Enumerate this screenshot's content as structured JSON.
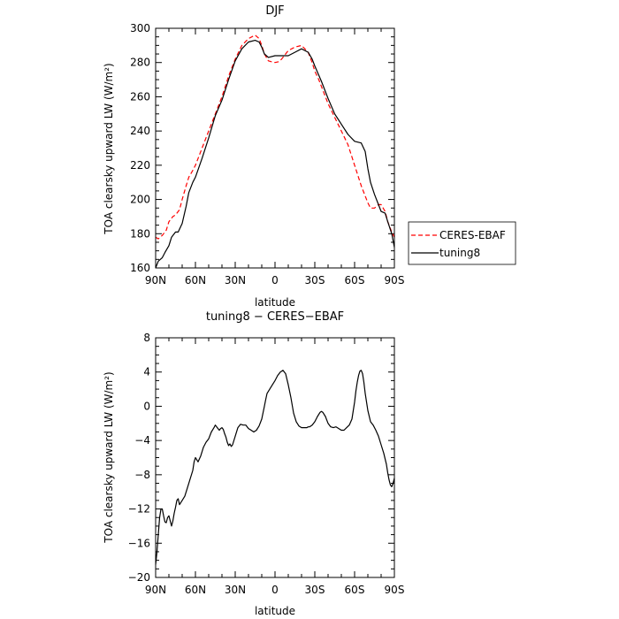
{
  "chart_data": [
    {
      "type": "line",
      "title": "DJF",
      "xlabel": "latitude",
      "ylabel": "TOA clearsky upward LW (W/m²)",
      "xlim": [
        90,
        -90
      ],
      "ylim": [
        160,
        300
      ],
      "xticks": [
        90,
        60,
        30,
        0,
        -30,
        -60,
        -90
      ],
      "xtick_labels": [
        "90N",
        "60N",
        "30N",
        "0",
        "30S",
        "60S",
        "90S"
      ],
      "yticks": [
        160,
        180,
        200,
        220,
        240,
        260,
        280,
        300
      ],
      "ytick_labels": [
        "160",
        "180",
        "200",
        "220",
        "240",
        "260",
        "280",
        "300"
      ],
      "legend": "right",
      "series": [
        {
          "name": "CERES-EBAF",
          "color": "#ff0000",
          "dash": "dashed",
          "x": [
            90,
            88,
            85,
            82,
            80,
            77,
            75,
            72,
            70,
            67,
            65,
            62,
            60,
            55,
            50,
            45,
            40,
            35,
            30,
            25,
            20,
            15,
            12,
            10,
            8,
            5,
            3,
            0,
            -3,
            -5,
            -8,
            -10,
            -15,
            -20,
            -25,
            -28,
            -30,
            -33,
            -35,
            -40,
            -45,
            -50,
            -55,
            -60,
            -65,
            -70,
            -72,
            -75,
            -78,
            -80,
            -83,
            -85,
            -88,
            -90
          ],
          "y": [
            178,
            177,
            179,
            182,
            187,
            190,
            191,
            194,
            200,
            208,
            213,
            217,
            220,
            230,
            240,
            250,
            260,
            272,
            282,
            290,
            294,
            296,
            294,
            290,
            285,
            281,
            280.5,
            280,
            280.5,
            282,
            285,
            287,
            289,
            290,
            286,
            280,
            275,
            270,
            266,
            256,
            248,
            240,
            232,
            220,
            208,
            198,
            195,
            195,
            197,
            197,
            193,
            187,
            181,
            178
          ]
        },
        {
          "name": "tuning8",
          "color": "#000000",
          "dash": "solid",
          "x": [
            90,
            88,
            85,
            83,
            80,
            78,
            75,
            73,
            70,
            67,
            65,
            62,
            60,
            55,
            50,
            45,
            40,
            35,
            30,
            25,
            20,
            15,
            12,
            10,
            8,
            5,
            0,
            -5,
            -10,
            -15,
            -20,
            -25,
            -28,
            -30,
            -35,
            -40,
            -45,
            -50,
            -55,
            -60,
            -65,
            -68,
            -70,
            -72,
            -75,
            -78,
            -80,
            -83,
            -85,
            -88,
            -90
          ],
          "y": [
            160,
            164,
            166,
            169,
            173,
            178,
            181,
            181,
            186,
            196,
            204,
            210,
            213,
            224,
            236,
            249,
            258,
            270,
            281,
            288,
            292,
            293,
            292,
            289,
            285,
            283,
            284,
            284,
            284,
            286,
            288,
            286,
            282,
            278,
            269,
            259,
            250,
            244,
            238,
            234,
            233,
            228,
            218,
            210,
            203,
            197,
            193,
            192,
            187,
            180,
            172
          ]
        }
      ]
    },
    {
      "type": "line",
      "title": "tuning8 − CERES−EBAF",
      "xlabel": "latitude",
      "ylabel": "TOA clearsky upward LW (W/m²)",
      "xlim": [
        90,
        -90
      ],
      "ylim": [
        -20,
        8
      ],
      "xticks": [
        90,
        60,
        30,
        0,
        -30,
        -60,
        -90
      ],
      "xtick_labels": [
        "90N",
        "60N",
        "30N",
        "0",
        "30S",
        "60S",
        "90S"
      ],
      "yticks": [
        -20,
        -16,
        -12,
        -8,
        -4,
        0,
        4,
        8
      ],
      "ytick_labels": [
        "−20",
        "−16",
        "−12",
        "−8",
        "−4",
        "0",
        "4",
        "8"
      ],
      "series": [
        {
          "color": "#000000",
          "dash": "solid",
          "x": [
            90,
            89,
            88,
            87,
            86,
            85,
            84,
            83,
            82,
            81,
            80,
            79,
            78,
            77,
            76,
            75,
            74,
            73,
            72,
            70,
            68,
            66,
            64,
            62,
            61,
            60,
            58,
            56,
            54,
            52,
            50,
            48,
            46,
            45,
            44,
            43,
            42,
            41,
            40,
            39,
            38,
            37,
            36,
            35,
            34,
            33,
            32,
            30,
            28,
            26,
            24,
            22,
            20,
            18,
            16,
            14,
            12,
            10,
            8,
            7,
            6,
            4,
            2,
            0,
            -2,
            -4,
            -6,
            -8,
            -10,
            -12,
            -14,
            -16,
            -18,
            -20,
            -22,
            -24,
            -25,
            -26,
            -28,
            -30,
            -32,
            -34,
            -35,
            -36,
            -38,
            -40,
            -42,
            -44,
            -46,
            -48,
            -50,
            -52,
            -54,
            -56,
            -58,
            -60,
            -61,
            -62,
            -63,
            -64,
            -65,
            -66,
            -67,
            -68,
            -70,
            -72,
            -74,
            -76,
            -78,
            -80,
            -82,
            -84,
            -85,
            -86,
            -87,
            -88,
            -89,
            -90
          ],
          "y": [
            -18.5,
            -17,
            -15,
            -13,
            -12,
            -12,
            -12.8,
            -13.5,
            -13.6,
            -13,
            -12.8,
            -13.4,
            -14,
            -13.4,
            -12.5,
            -11.8,
            -11,
            -10.8,
            -11.5,
            -11,
            -10.5,
            -9.5,
            -8.5,
            -7.5,
            -6.5,
            -6,
            -6.5,
            -5.8,
            -4.8,
            -4.2,
            -3.8,
            -3,
            -2.5,
            -2.2,
            -2.4,
            -2.6,
            -2.8,
            -2.6,
            -2.5,
            -2.7,
            -3.2,
            -3.6,
            -4.2,
            -4.6,
            -4.4,
            -4.7,
            -4.5,
            -3.5,
            -2.5,
            -2.1,
            -2.2,
            -2.2,
            -2.6,
            -2.8,
            -3,
            -2.8,
            -2.3,
            -1.5,
            0,
            0.8,
            1.5,
            2,
            2.5,
            3,
            3.6,
            4,
            4.2,
            3.8,
            2.5,
            1,
            -0.8,
            -1.8,
            -2.3,
            -2.5,
            -2.5,
            -2.5,
            -2.4,
            -2.4,
            -2.2,
            -1.8,
            -1.2,
            -0.7,
            -0.6,
            -0.7,
            -1.2,
            -2,
            -2.4,
            -2.5,
            -2.4,
            -2.6,
            -2.8,
            -2.8,
            -2.5,
            -2.2,
            -1.5,
            0.5,
            1.8,
            2.8,
            3.6,
            4.1,
            4.2,
            3.8,
            2.8,
            1.5,
            -0.5,
            -1.8,
            -2.2,
            -2.8,
            -3.5,
            -4.5,
            -5.5,
            -6.8,
            -7.8,
            -8.6,
            -9.2,
            -9.4,
            -9,
            -8.4
          ]
        }
      ]
    }
  ]
}
